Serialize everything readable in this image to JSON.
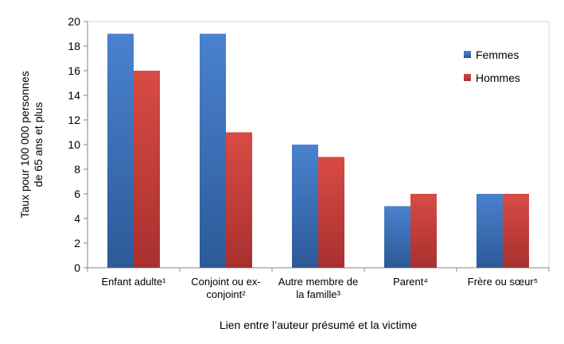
{
  "chart_data": {
    "type": "bar",
    "title": "",
    "categories": [
      [
        "Enfant adulte¹"
      ],
      [
        "Conjoint ou ex-",
        "conjoint²"
      ],
      [
        "Autre membre de",
        "la famille³"
      ],
      [
        "Parent⁴"
      ],
      [
        "Frère ou sœur⁵"
      ]
    ],
    "series": [
      {
        "name": "Femmes",
        "color": "#3a6fb8",
        "values": [
          19,
          19,
          10,
          5,
          6
        ]
      },
      {
        "name": "Hommes",
        "color": "#c43a3a",
        "values": [
          16,
          11,
          9,
          6,
          6
        ]
      }
    ],
    "xlabel": "Lien entre l’auteur présumé et la victime",
    "ylabel": [
      "Taux pour 100 000 personnes",
      "de 65 ans et plus"
    ],
    "ylim": [
      0,
      20
    ],
    "yticks": [
      0,
      2,
      4,
      6,
      8,
      10,
      12,
      14,
      16,
      18,
      20
    ],
    "grid": false,
    "legend_position": "right"
  }
}
